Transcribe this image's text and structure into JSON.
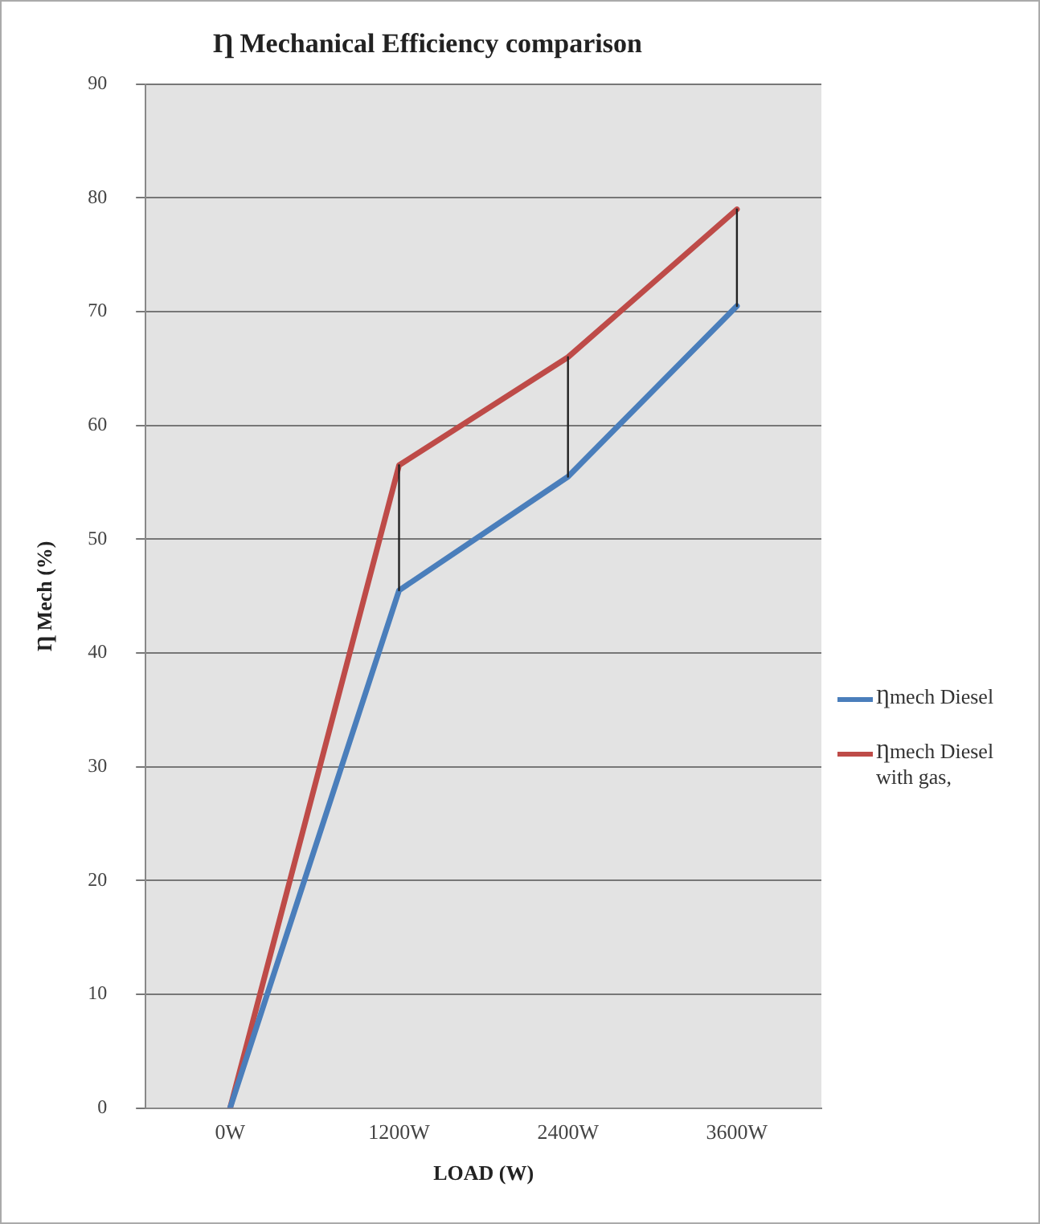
{
  "chart_data": {
    "type": "line",
    "title": "Ƞ Mechanical Efficiency comparison",
    "xlabel": "LOAD (W)",
    "ylabel": "Ƞ Mech (%)",
    "categories": [
      "0W",
      "1200W",
      "2400W",
      "3600W"
    ],
    "series": [
      {
        "name": "Ƞmech Diesel",
        "color": "#4a7ebb",
        "values": [
          0,
          45.5,
          55.5,
          70.5
        ]
      },
      {
        "name": "Ƞmech Diesel with gas,",
        "color": "#be4b48",
        "values": [
          0,
          56.5,
          66,
          79
        ]
      },
      {
        "type": "line",
        "color": "#222222",
        "x": [
          "1200W",
          "1200W"
        ],
        "values": [
          45.5,
          56.5
        ]
      },
      {
        "type": "line",
        "color": "#222222",
        "x": [
          "2400W",
          "2400W"
        ],
        "values": [
          55.5,
          66
        ]
      },
      {
        "type": "line",
        "color": "#222222",
        "x": [
          "3600W",
          "3600W"
        ],
        "values": [
          70.5,
          79
        ]
      }
    ],
    "ylim": [
      0,
      90
    ],
    "yticks": [
      0,
      10,
      20,
      30,
      40,
      50,
      60,
      70,
      80,
      90
    ],
    "grid": "y",
    "legend": "right",
    "marker": "none",
    "line_style": "solid"
  }
}
